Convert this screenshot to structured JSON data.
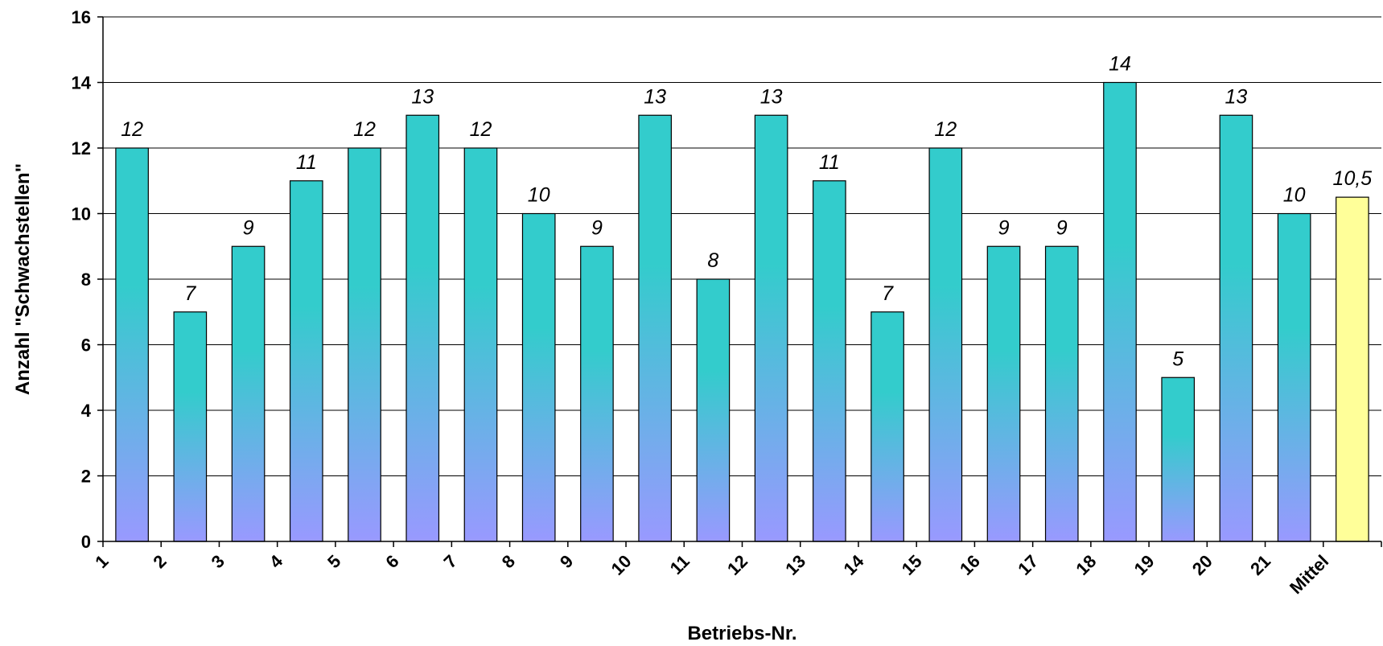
{
  "chart_data": {
    "type": "bar",
    "title": "",
    "xlabel": "Betriebs-Nr.",
    "ylabel": "Anzahl \"Schwachstellen\"",
    "ylim": [
      0,
      16
    ],
    "yticks": [
      0,
      2,
      4,
      6,
      8,
      10,
      12,
      14,
      16
    ],
    "grid": true,
    "legend": "none",
    "categories": [
      "1",
      "2",
      "3",
      "4",
      "5",
      "6",
      "7",
      "8",
      "9",
      "10",
      "11",
      "12",
      "13",
      "14",
      "15",
      "16",
      "17",
      "18",
      "19",
      "20",
      "21",
      "Mittel"
    ],
    "values": [
      12,
      7,
      9,
      11,
      12,
      13,
      12,
      10,
      9,
      13,
      8,
      13,
      11,
      7,
      12,
      9,
      9,
      14,
      5,
      13,
      10,
      10.5
    ],
    "data_labels": [
      "12",
      "7",
      "9",
      "11",
      "12",
      "13",
      "12",
      "10",
      "9",
      "13",
      "8",
      "13",
      "11",
      "7",
      "12",
      "9",
      "9",
      "14",
      "5",
      "13",
      "10",
      "10,5"
    ],
    "colors": {
      "bar_gradient_top": "#33CCCC",
      "bar_gradient_bottom": "#9999FF",
      "mean_bar": "#FFFF99",
      "gridline": "#000000",
      "bar_border": "#000000"
    }
  }
}
